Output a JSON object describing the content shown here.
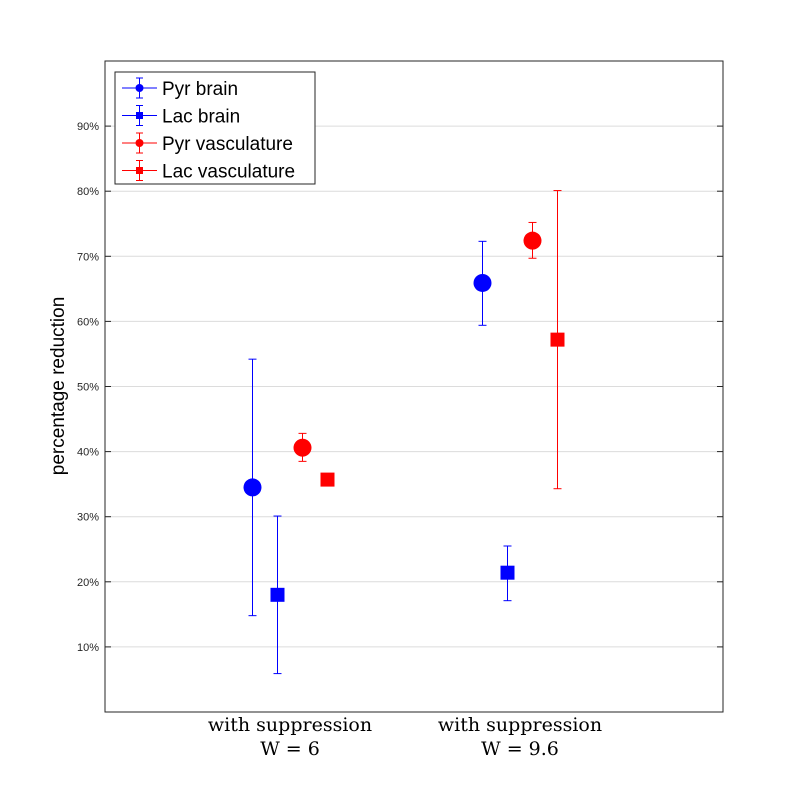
{
  "chart_data": {
    "type": "scatter",
    "ylabel": "percentage reduction",
    "ylim": [
      0,
      100
    ],
    "yticks": [
      10,
      20,
      30,
      40,
      50,
      60,
      70,
      80,
      90
    ],
    "ytick_suffix": "%",
    "grid": "horizontal",
    "legend_position": "top-left",
    "categories": [
      {
        "line1": "with suppression",
        "line2": "W = 6"
      },
      {
        "line1": "with suppression",
        "line2": "W = 9.6"
      }
    ],
    "series": [
      {
        "name": "Pyr brain",
        "color": "#0000ff",
        "marker": "circle",
        "points": [
          {
            "y": 34.5,
            "lo": 14.8,
            "hi": 54.2
          },
          {
            "y": 65.9,
            "lo": 59.4,
            "hi": 72.3
          }
        ]
      },
      {
        "name": "Lac brain",
        "color": "#0000ff",
        "marker": "square",
        "points": [
          {
            "y": 18.0,
            "lo": 5.9,
            "hi": 30.1
          },
          {
            "y": 21.4,
            "lo": 17.1,
            "hi": 25.5
          }
        ]
      },
      {
        "name": "Pyr vasculature",
        "color": "#ff0000",
        "marker": "circle",
        "points": [
          {
            "y": 40.6,
            "lo": 38.5,
            "hi": 42.8
          },
          {
            "y": 72.4,
            "lo": 69.7,
            "hi": 75.2
          }
        ]
      },
      {
        "name": "Lac vasculature",
        "color": "#ff0000",
        "marker": "square",
        "points": [
          {
            "y": 35.7,
            "lo": 35.7,
            "hi": 35.7
          },
          {
            "y": 57.2,
            "lo": 34.3,
            "hi": 80.1
          }
        ]
      }
    ]
  }
}
